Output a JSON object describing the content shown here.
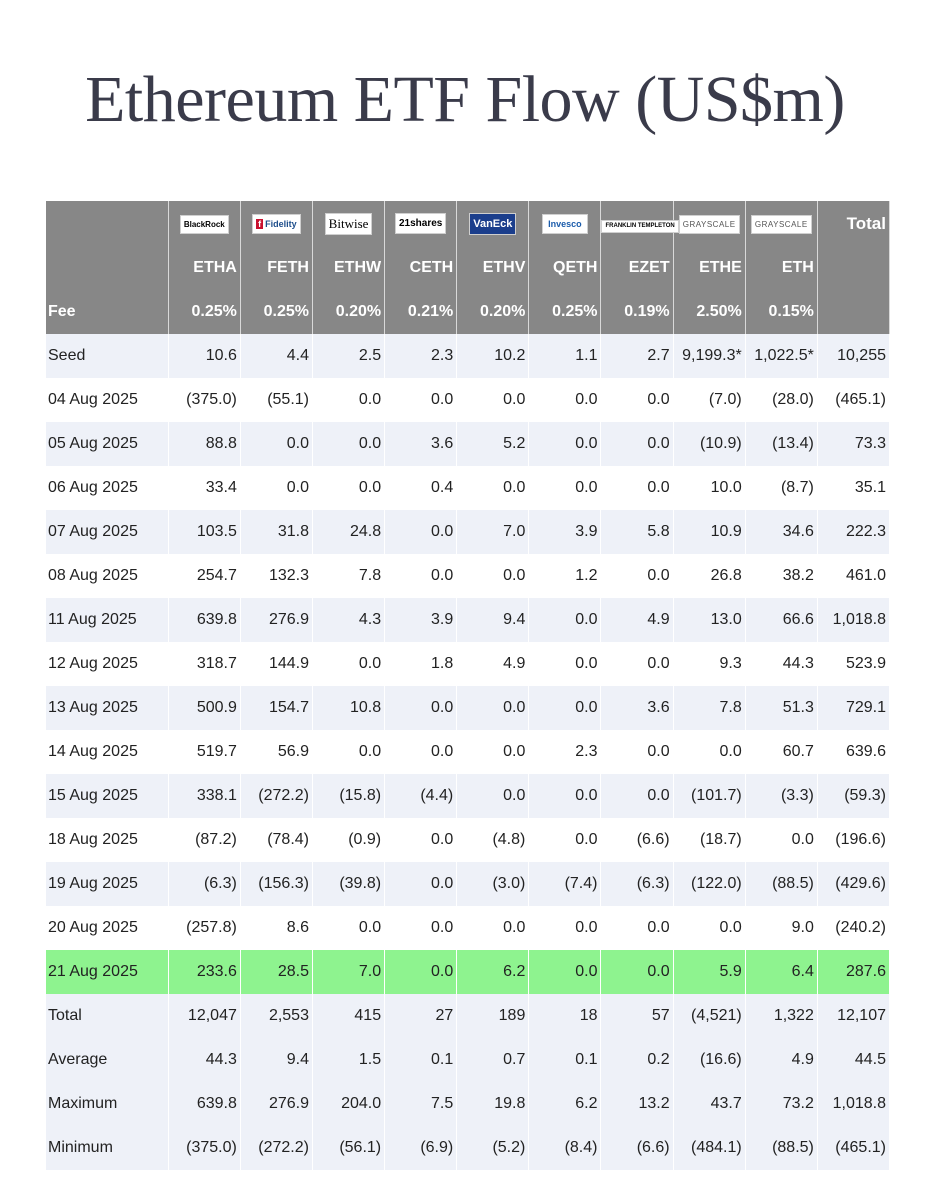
{
  "title": "Ethereum ETF Flow (US$m)",
  "issuers": [
    {
      "name": "BlackRock",
      "ticker": "ETHA",
      "fee": "0.25%"
    },
    {
      "name": "Fidelity",
      "ticker": "FETH",
      "fee": "0.25%"
    },
    {
      "name": "Bitwise",
      "ticker": "ETHW",
      "fee": "0.20%"
    },
    {
      "name": "21shares",
      "ticker": "CETH",
      "fee": "0.21%"
    },
    {
      "name": "VanEck",
      "ticker": "ETHV",
      "fee": "0.20%"
    },
    {
      "name": "Invesco",
      "ticker": "QETH",
      "fee": "0.25%"
    },
    {
      "name": "FRANKLIN TEMPLETON",
      "ticker": "EZET",
      "fee": "0.19%"
    },
    {
      "name": "GRAYSCALE",
      "ticker": "ETHE",
      "fee": "2.50%"
    },
    {
      "name": "GRAYSCALE",
      "ticker": "ETH",
      "fee": "0.15%"
    }
  ],
  "total_header": "Total",
  "fee_label": "Fee",
  "rows": [
    {
      "label": "Seed",
      "cells": [
        "10.6",
        "4.4",
        "2.5",
        "2.3",
        "10.2",
        "1.1",
        "2.7",
        "9,199.3*",
        "1,022.5*",
        "10,255"
      ]
    },
    {
      "label": "04 Aug 2025",
      "cells": [
        "(375.0)",
        "(55.1)",
        "0.0",
        "0.0",
        "0.0",
        "0.0",
        "0.0",
        "(7.0)",
        "(28.0)",
        "(465.1)"
      ]
    },
    {
      "label": "05 Aug 2025",
      "cells": [
        "88.8",
        "0.0",
        "0.0",
        "3.6",
        "5.2",
        "0.0",
        "0.0",
        "(10.9)",
        "(13.4)",
        "73.3"
      ]
    },
    {
      "label": "06 Aug 2025",
      "cells": [
        "33.4",
        "0.0",
        "0.0",
        "0.4",
        "0.0",
        "0.0",
        "0.0",
        "10.0",
        "(8.7)",
        "35.1"
      ]
    },
    {
      "label": "07 Aug 2025",
      "cells": [
        "103.5",
        "31.8",
        "24.8",
        "0.0",
        "7.0",
        "3.9",
        "5.8",
        "10.9",
        "34.6",
        "222.3"
      ]
    },
    {
      "label": "08 Aug 2025",
      "cells": [
        "254.7",
        "132.3",
        "7.8",
        "0.0",
        "0.0",
        "1.2",
        "0.0",
        "26.8",
        "38.2",
        "461.0"
      ]
    },
    {
      "label": "11 Aug 2025",
      "cells": [
        "639.8",
        "276.9",
        "4.3",
        "3.9",
        "9.4",
        "0.0",
        "4.9",
        "13.0",
        "66.6",
        "1,018.8"
      ]
    },
    {
      "label": "12 Aug 2025",
      "cells": [
        "318.7",
        "144.9",
        "0.0",
        "1.8",
        "4.9",
        "0.0",
        "0.0",
        "9.3",
        "44.3",
        "523.9"
      ]
    },
    {
      "label": "13 Aug 2025",
      "cells": [
        "500.9",
        "154.7",
        "10.8",
        "0.0",
        "0.0",
        "0.0",
        "3.6",
        "7.8",
        "51.3",
        "729.1"
      ]
    },
    {
      "label": "14 Aug 2025",
      "cells": [
        "519.7",
        "56.9",
        "0.0",
        "0.0",
        "0.0",
        "2.3",
        "0.0",
        "0.0",
        "60.7",
        "639.6"
      ]
    },
    {
      "label": "15 Aug 2025",
      "cells": [
        "338.1",
        "(272.2)",
        "(15.8)",
        "(4.4)",
        "0.0",
        "0.0",
        "0.0",
        "(101.7)",
        "(3.3)",
        "(59.3)"
      ]
    },
    {
      "label": "18 Aug 2025",
      "cells": [
        "(87.2)",
        "(78.4)",
        "(0.9)",
        "0.0",
        "(4.8)",
        "0.0",
        "(6.6)",
        "(18.7)",
        "0.0",
        "(196.6)"
      ]
    },
    {
      "label": "19 Aug 2025",
      "cells": [
        "(6.3)",
        "(156.3)",
        "(39.8)",
        "0.0",
        "(3.0)",
        "(7.4)",
        "(6.3)",
        "(122.0)",
        "(88.5)",
        "(429.6)"
      ]
    },
    {
      "label": "20 Aug 2025",
      "cells": [
        "(257.8)",
        "8.6",
        "0.0",
        "0.0",
        "0.0",
        "0.0",
        "0.0",
        "0.0",
        "9.0",
        "(240.2)"
      ]
    },
    {
      "label": "21 Aug 2025",
      "cells": [
        "233.6",
        "28.5",
        "7.0",
        "0.0",
        "6.2",
        "0.0",
        "0.0",
        "5.9",
        "6.4",
        "287.6"
      ],
      "highlight": true
    }
  ],
  "summary": [
    {
      "label": "Total",
      "cells": [
        "12,047",
        "2,553",
        "415",
        "27",
        "189",
        "18",
        "57",
        "(4,521)",
        "1,322",
        "12,107"
      ]
    },
    {
      "label": "Average",
      "cells": [
        "44.3",
        "9.4",
        "1.5",
        "0.1",
        "0.7",
        "0.1",
        "0.2",
        "(16.6)",
        "4.9",
        "44.5"
      ]
    },
    {
      "label": "Maximum",
      "cells": [
        "639.8",
        "276.9",
        "204.0",
        "7.5",
        "19.8",
        "6.2",
        "13.2",
        "43.7",
        "73.2",
        "1,018.8"
      ]
    },
    {
      "label": "Minimum",
      "cells": [
        "(375.0)",
        "(272.2)",
        "(56.1)",
        "(6.9)",
        "(5.2)",
        "(8.4)",
        "(6.6)",
        "(484.1)",
        "(88.5)",
        "(465.1)"
      ]
    }
  ],
  "colors": {
    "header_bg": "#878787",
    "row_alt_bg": "#eef1f8",
    "highlight_bg": "#8ef38f",
    "negative": "#d0312d",
    "title": "#3a3b4a"
  },
  "logo_icons": [
    "blackrock-logo",
    "fidelity-logo",
    "bitwise-logo",
    "21shares-logo",
    "vaneck-logo",
    "invesco-logo",
    "franklin-templeton-logo",
    "grayscale-logo",
    "grayscale-logo"
  ]
}
